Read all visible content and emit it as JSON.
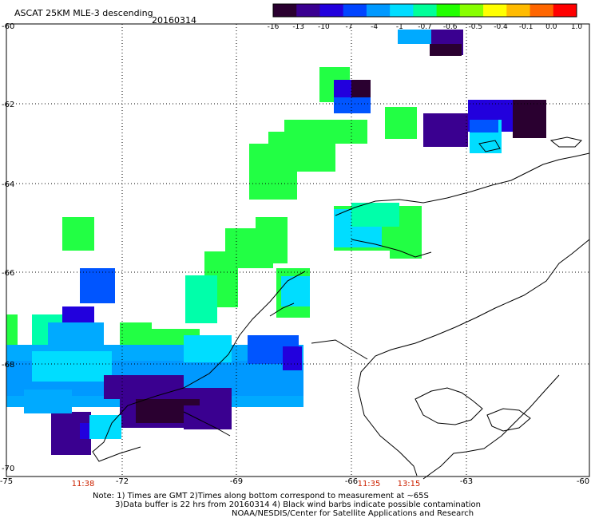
{
  "header": {
    "title": "ASCAT 25KM MLE-3 descending",
    "date": "20160314"
  },
  "colorbar": {
    "labels": [
      "-16",
      "-13",
      "-10",
      "-7",
      "-4",
      "-1",
      "-0.7",
      "-0.6",
      "-0.5",
      "-0.4",
      "-0.1",
      "0.0",
      "1.0"
    ],
    "colors": [
      "#2a0030",
      "#3a0090",
      "#2200dd",
      "#0044ff",
      "#0099ff",
      "#00ddff",
      "#00ff99",
      "#22ff00",
      "#88ff00",
      "#ffff00",
      "#ffbb00",
      "#ff6600",
      "#ff0000"
    ]
  },
  "axes": {
    "lon_labels": [
      "-75",
      "-72",
      "-69",
      "-66",
      "-63",
      "-60"
    ],
    "lat_labels": [
      "-60",
      "-62",
      "-64",
      "-66",
      "-68",
      "-70"
    ],
    "grid": true
  },
  "times": {
    "labels": [
      "11:38",
      "11:35",
      "13:15"
    ],
    "color": "#cc2200"
  },
  "notes": {
    "line1": "Note: 1) Times are GMT 2)Times along bottom correspond to measurement at ~65S",
    "line2": "3)Data buffer is 22 hrs from 20160314 4) Black wind barbs indicate possible contamination",
    "line3": "NOAA/NESDIS/Center for Satellite Applications and Research"
  },
  "map_data": {
    "extent": {
      "lon": [
        -75,
        -60
      ],
      "lat": [
        -70,
        -60
      ]
    },
    "palette": {
      "purple": "#3a0090",
      "dark": "#2a0030",
      "blue": "#2200dd",
      "mid_blue": "#0055ff",
      "light_blue": "#0099ff",
      "sky": "#00aaff",
      "cyan": "#00ddff",
      "teal": "#00ffaa",
      "green": "#22ff44"
    }
  }
}
